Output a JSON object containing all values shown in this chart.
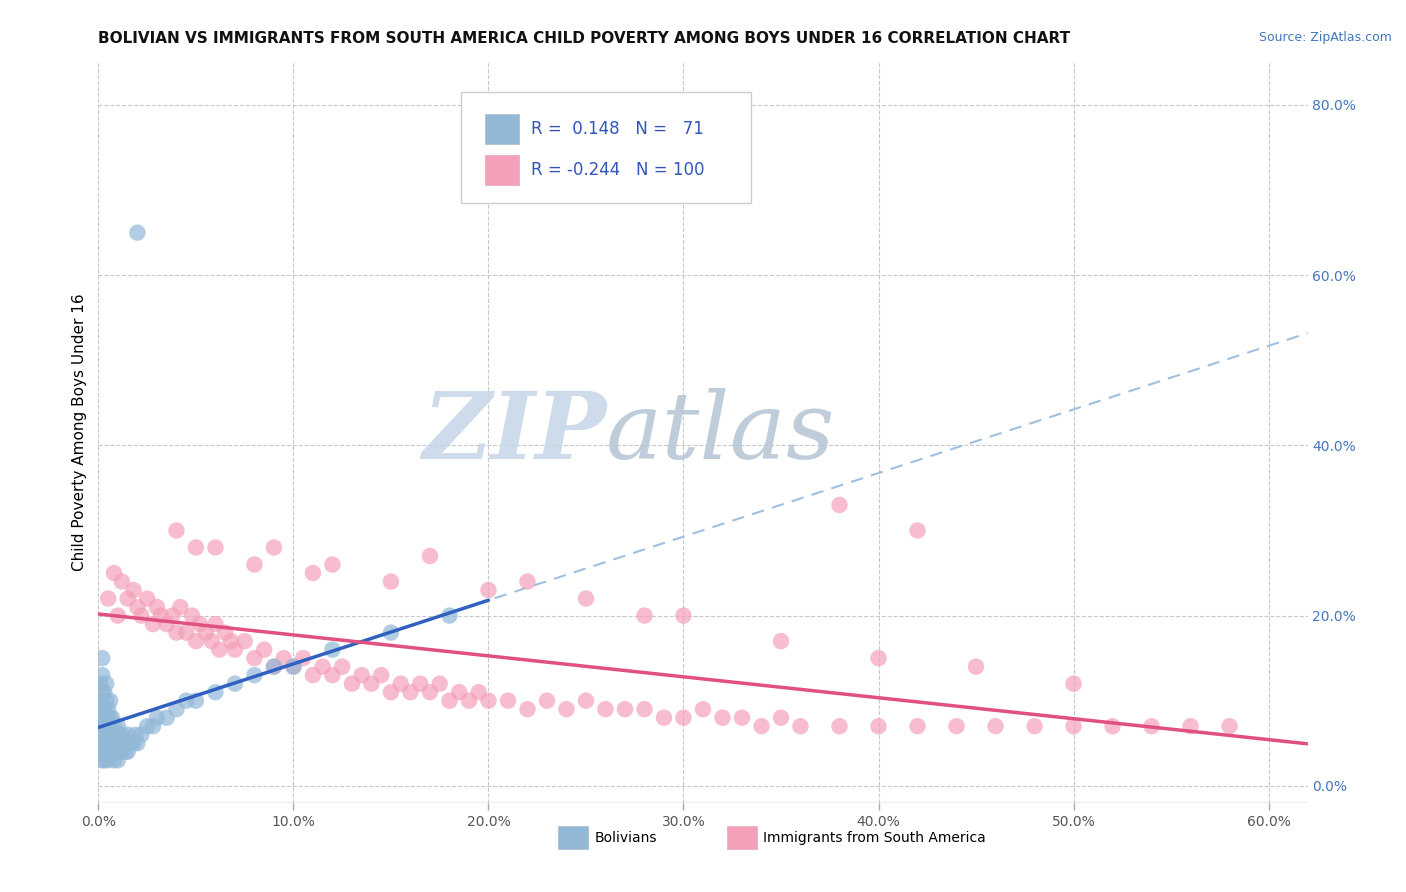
{
  "title": "BOLIVIAN VS IMMIGRANTS FROM SOUTH AMERICA CHILD POVERTY AMONG BOYS UNDER 16 CORRELATION CHART",
  "source": "Source: ZipAtlas.com",
  "ylabel": "Child Poverty Among Boys Under 16",
  "xlim": [
    0.0,
    0.62
  ],
  "ylim": [
    -0.02,
    0.85
  ],
  "xticks": [
    0.0,
    0.1,
    0.2,
    0.3,
    0.4,
    0.5,
    0.6
  ],
  "xticklabels": [
    "0.0%",
    "10.0%",
    "20.0%",
    "30.0%",
    "40.0%",
    "50.0%",
    "60.0%"
  ],
  "yticks": [
    0.0,
    0.2,
    0.4,
    0.6,
    0.8
  ],
  "yticklabels": [
    "0.0%",
    "20.0%",
    "40.0%",
    "60.0%",
    "80.0%"
  ],
  "color_blue": "#92B8D8",
  "color_pink": "#F4A0B8",
  "trend_blue": "#3060C0",
  "trend_pink": "#E05080",
  "trend_dashed": "#A0C0E0",
  "grid_color": "#C8C8C8",
  "watermark_zip": "ZIP",
  "watermark_atlas": "atlas",
  "watermark_color_zip": "#C8D8E8",
  "watermark_color_atlas": "#B8C8D8",
  "blue_r": 0.148,
  "blue_n": 71,
  "pink_r": -0.244,
  "pink_n": 100,
  "blue_scatter_x": [
    0.001,
    0.001,
    0.001,
    0.001,
    0.001,
    0.002,
    0.002,
    0.002,
    0.002,
    0.002,
    0.002,
    0.002,
    0.003,
    0.003,
    0.003,
    0.003,
    0.003,
    0.004,
    0.004,
    0.004,
    0.004,
    0.004,
    0.005,
    0.005,
    0.005,
    0.005,
    0.006,
    0.006,
    0.006,
    0.006,
    0.007,
    0.007,
    0.007,
    0.008,
    0.008,
    0.008,
    0.009,
    0.009,
    0.01,
    0.01,
    0.01,
    0.011,
    0.011,
    0.012,
    0.012,
    0.013,
    0.014,
    0.015,
    0.015,
    0.016,
    0.017,
    0.018,
    0.019,
    0.02,
    0.022,
    0.025,
    0.028,
    0.03,
    0.035,
    0.04,
    0.045,
    0.05,
    0.06,
    0.07,
    0.08,
    0.09,
    0.1,
    0.12,
    0.15,
    0.18,
    0.02
  ],
  "blue_scatter_y": [
    0.04,
    0.06,
    0.08,
    0.1,
    0.12,
    0.03,
    0.05,
    0.07,
    0.09,
    0.11,
    0.13,
    0.15,
    0.03,
    0.05,
    0.07,
    0.09,
    0.11,
    0.04,
    0.06,
    0.08,
    0.1,
    0.12,
    0.03,
    0.05,
    0.07,
    0.09,
    0.04,
    0.06,
    0.08,
    0.1,
    0.04,
    0.06,
    0.08,
    0.03,
    0.05,
    0.07,
    0.04,
    0.06,
    0.03,
    0.05,
    0.07,
    0.04,
    0.06,
    0.04,
    0.06,
    0.05,
    0.04,
    0.04,
    0.06,
    0.05,
    0.05,
    0.05,
    0.06,
    0.05,
    0.06,
    0.07,
    0.07,
    0.08,
    0.08,
    0.09,
    0.1,
    0.1,
    0.11,
    0.12,
    0.13,
    0.14,
    0.14,
    0.16,
    0.18,
    0.2,
    0.65
  ],
  "pink_scatter_x": [
    0.005,
    0.008,
    0.01,
    0.012,
    0.015,
    0.018,
    0.02,
    0.022,
    0.025,
    0.028,
    0.03,
    0.032,
    0.035,
    0.038,
    0.04,
    0.042,
    0.045,
    0.048,
    0.05,
    0.052,
    0.055,
    0.058,
    0.06,
    0.062,
    0.065,
    0.068,
    0.07,
    0.075,
    0.08,
    0.085,
    0.09,
    0.095,
    0.1,
    0.105,
    0.11,
    0.115,
    0.12,
    0.125,
    0.13,
    0.135,
    0.14,
    0.145,
    0.15,
    0.155,
    0.16,
    0.165,
    0.17,
    0.175,
    0.18,
    0.185,
    0.19,
    0.195,
    0.2,
    0.21,
    0.22,
    0.23,
    0.24,
    0.25,
    0.26,
    0.27,
    0.28,
    0.29,
    0.3,
    0.31,
    0.32,
    0.33,
    0.34,
    0.35,
    0.36,
    0.38,
    0.4,
    0.42,
    0.44,
    0.46,
    0.48,
    0.5,
    0.52,
    0.54,
    0.56,
    0.58,
    0.05,
    0.08,
    0.11,
    0.15,
    0.2,
    0.25,
    0.3,
    0.04,
    0.06,
    0.09,
    0.12,
    0.17,
    0.22,
    0.28,
    0.35,
    0.4,
    0.45,
    0.5,
    0.38,
    0.42
  ],
  "pink_scatter_y": [
    0.22,
    0.25,
    0.2,
    0.24,
    0.22,
    0.23,
    0.21,
    0.2,
    0.22,
    0.19,
    0.21,
    0.2,
    0.19,
    0.2,
    0.18,
    0.21,
    0.18,
    0.2,
    0.17,
    0.19,
    0.18,
    0.17,
    0.19,
    0.16,
    0.18,
    0.17,
    0.16,
    0.17,
    0.15,
    0.16,
    0.14,
    0.15,
    0.14,
    0.15,
    0.13,
    0.14,
    0.13,
    0.14,
    0.12,
    0.13,
    0.12,
    0.13,
    0.11,
    0.12,
    0.11,
    0.12,
    0.11,
    0.12,
    0.1,
    0.11,
    0.1,
    0.11,
    0.1,
    0.1,
    0.09,
    0.1,
    0.09,
    0.1,
    0.09,
    0.09,
    0.09,
    0.08,
    0.08,
    0.09,
    0.08,
    0.08,
    0.07,
    0.08,
    0.07,
    0.07,
    0.07,
    0.07,
    0.07,
    0.07,
    0.07,
    0.07,
    0.07,
    0.07,
    0.07,
    0.07,
    0.28,
    0.26,
    0.25,
    0.24,
    0.23,
    0.22,
    0.2,
    0.3,
    0.28,
    0.28,
    0.26,
    0.27,
    0.24,
    0.2,
    0.17,
    0.15,
    0.14,
    0.12,
    0.33,
    0.3
  ]
}
